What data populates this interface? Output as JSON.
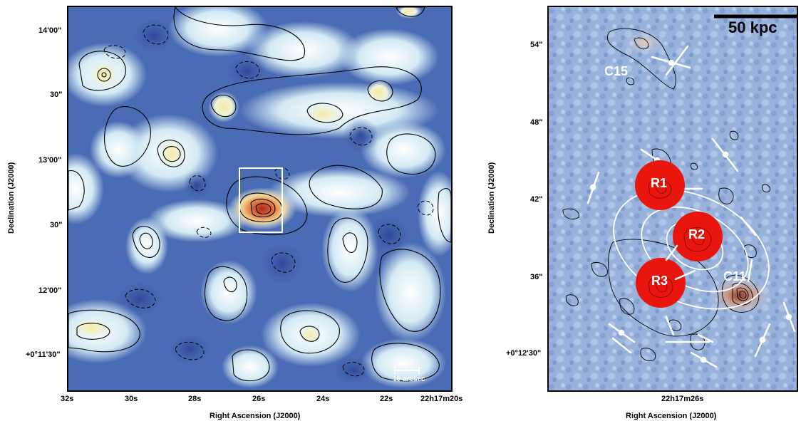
{
  "left_panel": {
    "ylabel": "Declination (J2000)",
    "xlabel": "Right Ascension (J2000)",
    "y_ticks": [
      "14'00\"",
      "30\"",
      "13'00\"",
      "30\"",
      "12'00\"",
      "+0°11'30\""
    ],
    "x_ticks": [
      "32s",
      "30s",
      "28s",
      "26s",
      "24s",
      "22s",
      "22h17m20s"
    ],
    "scalebar_label": "10 arcsec"
  },
  "right_panel": {
    "ylabel": "Declination (J2000)",
    "xlabel": "Right Ascension (J2000)",
    "y_ticks": [
      "54\"",
      "48\"",
      "42\"",
      "36\"",
      "+0°12'30\""
    ],
    "x_ticks": [
      "22h17m26s"
    ],
    "scalebar_label": "50 kpc",
    "markers": [
      "R1",
      "R2",
      "R3"
    ],
    "sources": [
      "C15",
      "C11"
    ]
  },
  "colors": {
    "map_low": "#3a58a8",
    "map_mid": "#d9ecf5",
    "map_high": "#f6e9a6",
    "peak": "#c23a25",
    "marker": "#e8160c"
  }
}
